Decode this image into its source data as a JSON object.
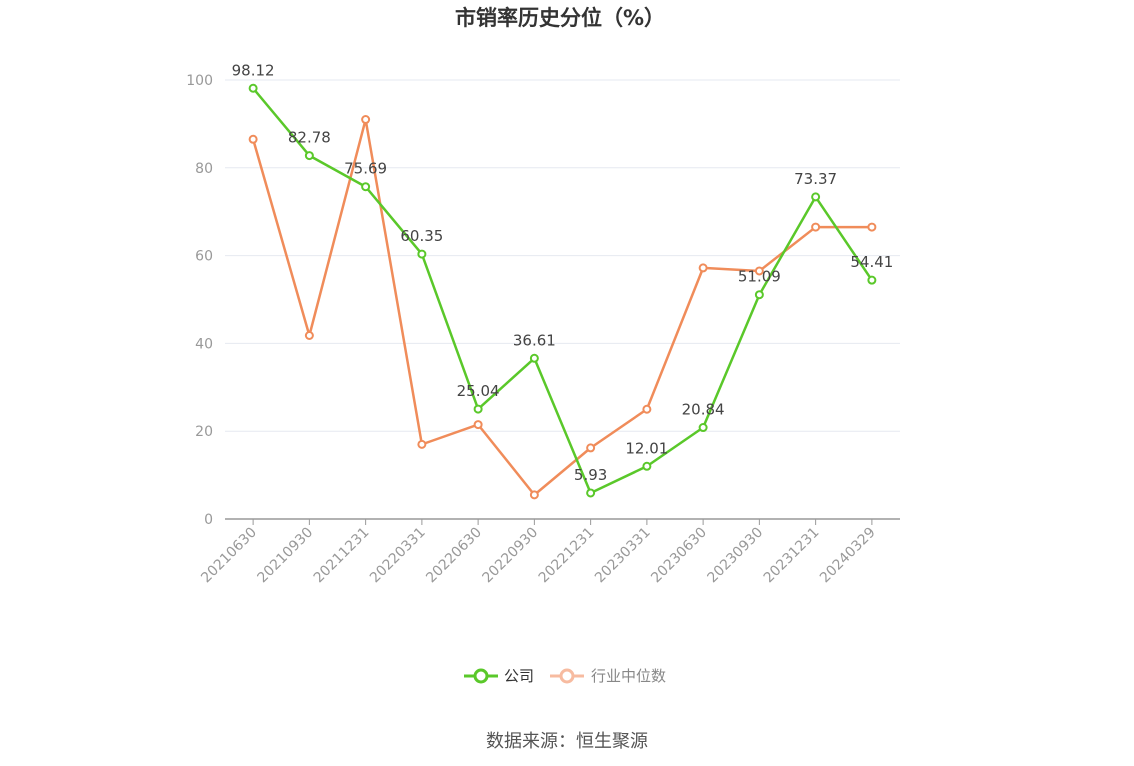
{
  "chart_data": {
    "type": "line",
    "title": "市销率历史分位（%）",
    "categories": [
      "20210630",
      "20210930",
      "20211231",
      "20220331",
      "20220630",
      "20220930",
      "20221231",
      "20230331",
      "20230630",
      "20230930",
      "20231231",
      "20240329"
    ],
    "ylim": [
      0,
      100
    ],
    "yticks": [
      "0",
      "20",
      "40",
      "60",
      "80",
      "100"
    ],
    "grid": true,
    "legend_position": "bottom",
    "series": [
      {
        "name": "公司",
        "color": "#5ac82a",
        "values": [
          98.12,
          82.78,
          75.69,
          60.35,
          25.04,
          36.61,
          5.93,
          12.01,
          20.84,
          51.09,
          73.37,
          54.41
        ],
        "labels": [
          "98.12",
          "82.78",
          "75.69",
          "60.35",
          "25.04",
          "36.61",
          "5.93",
          "12.01",
          "20.84",
          "51.09",
          "73.37",
          "54.41"
        ]
      },
      {
        "name": "行业中位数",
        "color": "#f08c5a",
        "legend_color": "#f7bba0",
        "values": [
          86.5,
          41.8,
          91.0,
          17.0,
          21.5,
          5.5,
          16.2,
          25.0,
          57.2,
          56.5,
          66.5,
          66.5
        ]
      }
    ]
  },
  "source": "数据来源：恒生聚源"
}
